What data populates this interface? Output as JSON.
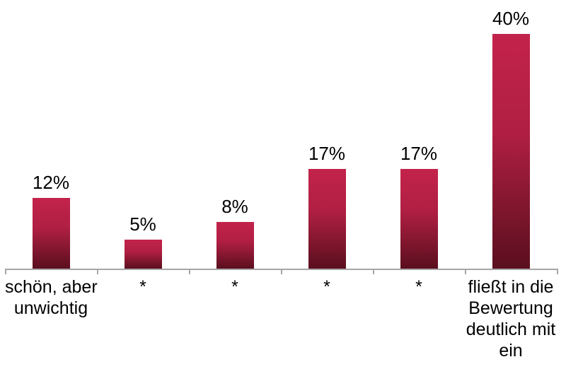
{
  "chart_data": {
    "type": "bar",
    "title": "",
    "xlabel": "",
    "ylabel": "",
    "grid": false,
    "legend": null,
    "ylim": [
      0,
      45.8
    ],
    "categories": [
      "schön, aber unwichtig",
      "*",
      "*",
      "*",
      "*",
      "fließt in die Bewertung deutlich mit ein"
    ],
    "category_label_lines": [
      [
        "schön, aber",
        "unwichtig"
      ],
      [
        "*"
      ],
      [
        "*"
      ],
      [
        "*"
      ],
      [
        "*"
      ],
      [
        "fließt in die",
        "Bewertung",
        "deutlich mit",
        "ein"
      ]
    ],
    "values": [
      12,
      5,
      8,
      17,
      17,
      40
    ],
    "value_labels": [
      "12%",
      "5%",
      "8%",
      "17%",
      "17%",
      "40%"
    ],
    "colors": {
      "bar_gradient_top": "#c3234a",
      "bar_gradient_bottom": "#5a0f1e",
      "axis": "#a6a6a6",
      "text": "#000000",
      "background": "#ffffff"
    }
  }
}
